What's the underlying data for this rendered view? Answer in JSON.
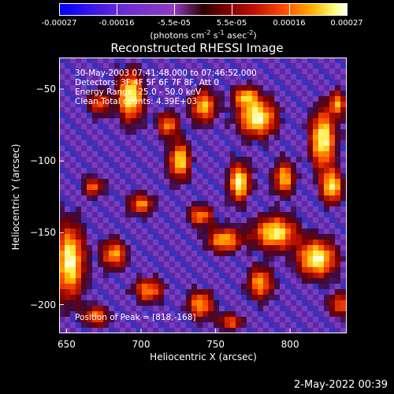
{
  "chart_data": {
    "type": "heatmap",
    "title": "Reconstructed RHESSI Image",
    "xlabel": "Heliocentric X (arcsec)",
    "ylabel": "Heliocentric Y (arcsec)",
    "xlim": [
      645,
      838
    ],
    "ylim": [
      -220,
      -28
    ],
    "x_ticks": [
      650,
      700,
      750,
      800
    ],
    "y_ticks": [
      -50,
      -100,
      -150,
      -200
    ],
    "colorbar": {
      "ticks": [
        "-0.00027",
        "-0.00016",
        "-5.5e-05",
        "5.5e-05",
        "0.00016",
        "0.00027"
      ],
      "unit_prefix": "(photons cm",
      "unit_exp1": "-2",
      "unit_mid": " s",
      "unit_exp2": "-1",
      "unit_mid2": " asec",
      "unit_exp3": "-2",
      "unit_suffix": ")",
      "range": [
        -0.00027,
        0.00027
      ]
    },
    "annotations": {
      "time_range": "30-May-2003 07:41:48.000 to 07:46:52.000",
      "detectors": "Detectors: 3F 4F 5F 6F 7F 8F, Att 0",
      "energy": "Energy Range: 25.0 - 50.0 keV",
      "clean": "Clean    Total counts: 4.39E+03",
      "peak": "Position of Peak = [818,-168]"
    },
    "blobs": [
      {
        "x": 693,
        "y": -55,
        "sx": 6,
        "sy": 12,
        "v": 1.0
      },
      {
        "x": 672,
        "y": -60,
        "sx": 5,
        "sy": 6,
        "v": 0.6
      },
      {
        "x": 718,
        "y": -75,
        "sx": 5,
        "sy": 6,
        "v": 0.7
      },
      {
        "x": 742,
        "y": -62,
        "sx": 6,
        "sy": 8,
        "v": 0.8
      },
      {
        "x": 778,
        "y": -70,
        "sx": 9,
        "sy": 9,
        "v": 1.0
      },
      {
        "x": 770,
        "y": -55,
        "sx": 6,
        "sy": 5,
        "v": 0.7
      },
      {
        "x": 822,
        "y": -85,
        "sx": 6,
        "sy": 14,
        "v": 1.0
      },
      {
        "x": 832,
        "y": -60,
        "sx": 4,
        "sy": 6,
        "v": 0.7
      },
      {
        "x": 726,
        "y": -100,
        "sx": 5,
        "sy": 9,
        "v": 0.9
      },
      {
        "x": 766,
        "y": -115,
        "sx": 5,
        "sy": 9,
        "v": 1.0
      },
      {
        "x": 796,
        "y": -112,
        "sx": 5,
        "sy": 8,
        "v": 0.8
      },
      {
        "x": 828,
        "y": -118,
        "sx": 5,
        "sy": 8,
        "v": 0.9
      },
      {
        "x": 668,
        "y": -118,
        "sx": 5,
        "sy": 5,
        "v": 0.6
      },
      {
        "x": 700,
        "y": -130,
        "sx": 6,
        "sy": 5,
        "v": 0.7
      },
      {
        "x": 740,
        "y": -138,
        "sx": 6,
        "sy": 5,
        "v": 0.7
      },
      {
        "x": 756,
        "y": -155,
        "sx": 8,
        "sy": 6,
        "v": 0.8
      },
      {
        "x": 790,
        "y": -150,
        "sx": 10,
        "sy": 8,
        "v": 0.95
      },
      {
        "x": 818,
        "y": -168,
        "sx": 9,
        "sy": 9,
        "v": 1.0
      },
      {
        "x": 652,
        "y": -170,
        "sx": 7,
        "sy": 18,
        "v": 1.0
      },
      {
        "x": 682,
        "y": -165,
        "sx": 6,
        "sy": 7,
        "v": 0.75
      },
      {
        "x": 705,
        "y": -190,
        "sx": 7,
        "sy": 6,
        "v": 0.7
      },
      {
        "x": 740,
        "y": -200,
        "sx": 6,
        "sy": 7,
        "v": 0.75
      },
      {
        "x": 780,
        "y": -185,
        "sx": 6,
        "sy": 8,
        "v": 0.75
      },
      {
        "x": 833,
        "y": -200,
        "sx": 5,
        "sy": 6,
        "v": 0.6
      },
      {
        "x": 670,
        "y": -208,
        "sx": 6,
        "sy": 5,
        "v": 0.65
      },
      {
        "x": 760,
        "y": -212,
        "sx": 6,
        "sy": 4,
        "v": 0.6
      }
    ]
  },
  "timestamp": "2-May-2022 00:39"
}
